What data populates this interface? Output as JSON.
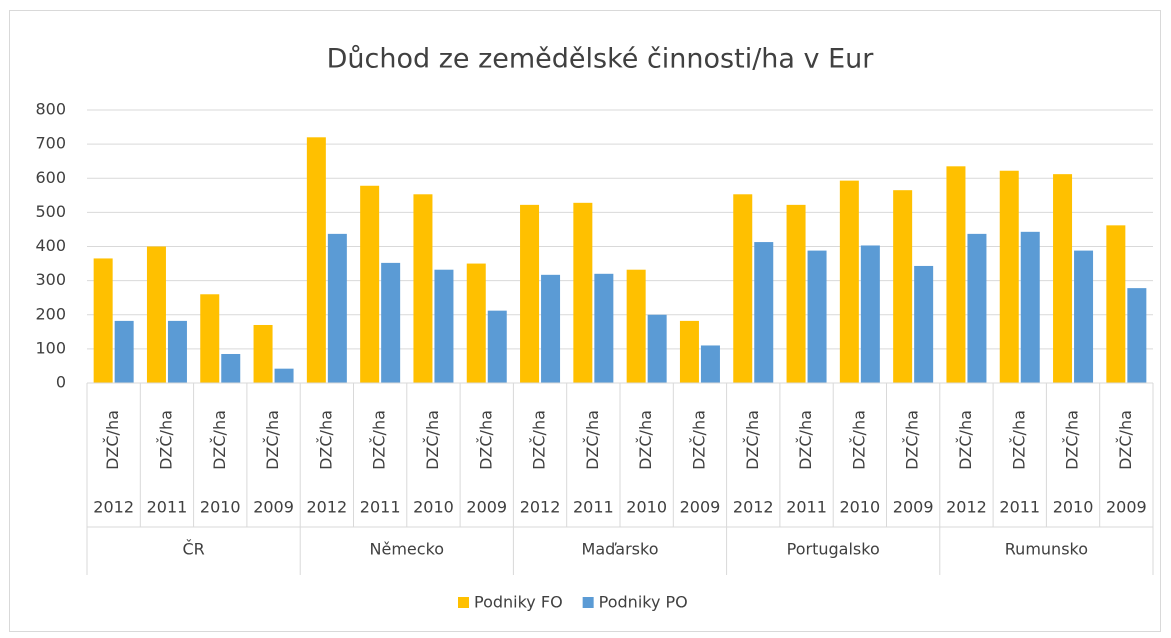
{
  "chart_data": {
    "type": "bar",
    "title": "Důchod ze zemědělské činnosti/ha v Eur",
    "categories": [
      "DZČ/ha",
      "DZČ/ha",
      "DZČ/ha",
      "DZČ/ha",
      "DZČ/ha",
      "DZČ/ha",
      "DZČ/ha",
      "DZČ/ha",
      "DZČ/ha",
      "DZČ/ha",
      "DZČ/ha",
      "DZČ/ha",
      "DZČ/ha",
      "DZČ/ha",
      "DZČ/ha",
      "DZČ/ha",
      "DZČ/ha",
      "DZČ/ha",
      "DZČ/ha",
      "DZČ/ha"
    ],
    "years": [
      "2012",
      "2011",
      "2010",
      "2009",
      "2012",
      "2011",
      "2010",
      "2009",
      "2012",
      "2011",
      "2010",
      "2009",
      "2012",
      "2011",
      "2010",
      "2009",
      "2012",
      "2011",
      "2010",
      "2009"
    ],
    "groups": [
      "ČR",
      "Německo",
      "Maďarsko",
      "Portugalsko",
      "Rumunsko"
    ],
    "series": [
      {
        "name": "Podniky FO",
        "color": "#ffc000",
        "values": [
          365,
          400,
          260,
          170,
          720,
          578,
          553,
          350,
          522,
          528,
          332,
          182,
          553,
          522,
          593,
          565,
          635,
          622,
          612,
          462
        ]
      },
      {
        "name": "Podniky PO",
        "color": "#5b9bd5",
        "values": [
          182,
          182,
          85,
          42,
          437,
          352,
          332,
          212,
          317,
          320,
          200,
          110,
          413,
          388,
          403,
          343,
          437,
          443,
          388,
          278
        ]
      }
    ],
    "ylim": [
      0,
      800
    ],
    "yticks": [
      0,
      100,
      200,
      300,
      400,
      500,
      600,
      700,
      800
    ],
    "grid": true,
    "legend": "bottom"
  }
}
